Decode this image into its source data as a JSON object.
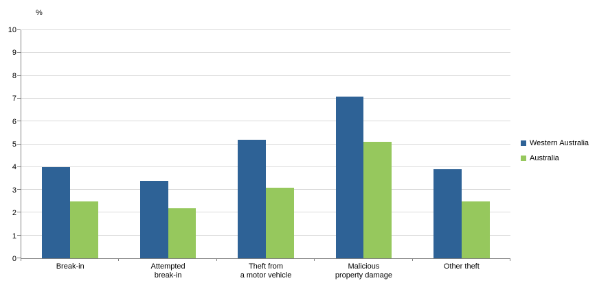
{
  "chart_data": {
    "type": "bar",
    "title": "",
    "ylabel": "%",
    "xlabel": "",
    "ylim": [
      0,
      10
    ],
    "yticks": [
      0,
      1,
      2,
      3,
      4,
      5,
      6,
      7,
      8,
      9,
      10
    ],
    "grid": true,
    "legend_position": "right",
    "axis_color": "#808080",
    "gridline_color": "#D9D9D9",
    "categories": [
      "Break-in",
      "Attempted\nbreak-in",
      "Theft from\na motor vehicle",
      "Malicious\nproperty damage",
      "Other theft"
    ],
    "series": [
      {
        "name": "Western Australia",
        "color": "#2E6296",
        "values": [
          4.0,
          3.4,
          5.2,
          7.1,
          3.9
        ]
      },
      {
        "name": "Australia",
        "color": "#96C85D",
        "values": [
          2.5,
          2.2,
          3.1,
          5.1,
          2.5
        ]
      }
    ]
  }
}
